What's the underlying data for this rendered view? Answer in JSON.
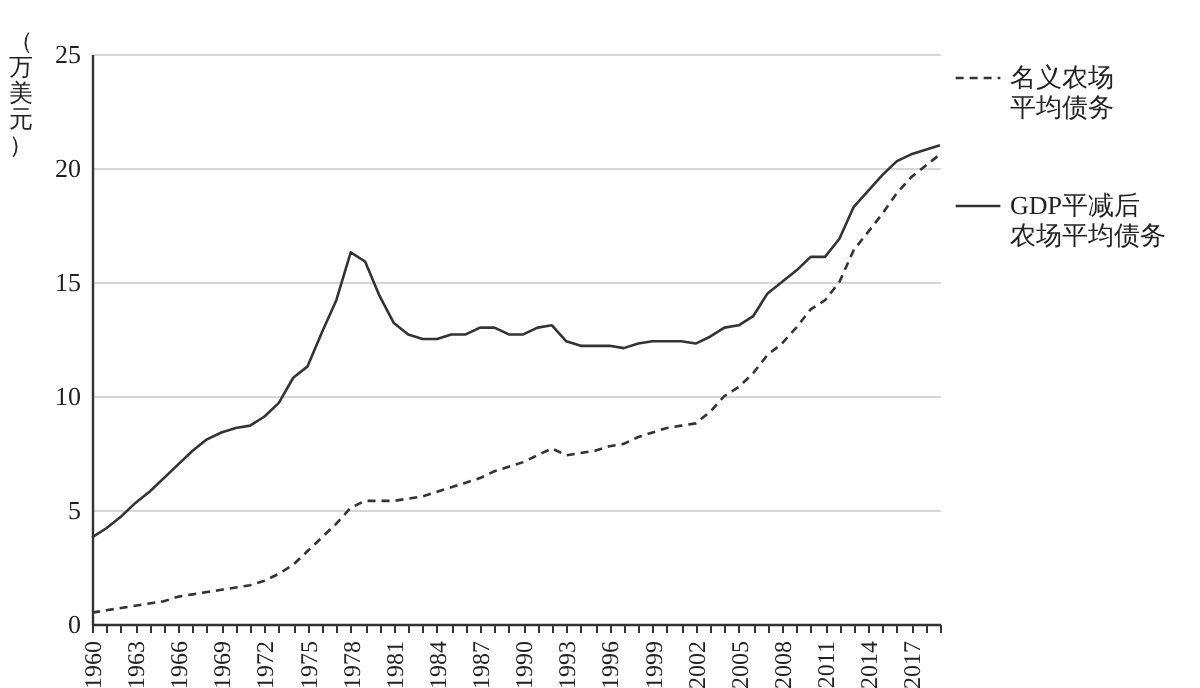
{
  "chart_data": {
    "type": "line",
    "ylabel": "（万美元）",
    "x": [
      1960,
      1961,
      1962,
      1963,
      1964,
      1965,
      1966,
      1967,
      1968,
      1969,
      1970,
      1971,
      1972,
      1973,
      1974,
      1975,
      1976,
      1977,
      1978,
      1979,
      1980,
      1981,
      1982,
      1983,
      1984,
      1985,
      1986,
      1987,
      1988,
      1989,
      1990,
      1991,
      1992,
      1993,
      1994,
      1995,
      1996,
      1997,
      1998,
      1999,
      2000,
      2001,
      2002,
      2003,
      2004,
      2005,
      2006,
      2007,
      2008,
      2009,
      2010,
      2011,
      2012,
      2013,
      2014,
      2015,
      2016,
      2017,
      2018,
      2019
    ],
    "series": [
      {
        "name": "名义农场平均债务",
        "color": "#333333",
        "line_style": "dashed",
        "values": [
          0.5,
          0.6,
          0.7,
          0.8,
          0.9,
          1.0,
          1.2,
          1.3,
          1.4,
          1.5,
          1.6,
          1.7,
          1.9,
          2.2,
          2.6,
          3.2,
          3.8,
          4.4,
          5.1,
          5.4,
          5.4,
          5.4,
          5.5,
          5.6,
          5.8,
          6.0,
          6.2,
          6.4,
          6.7,
          6.9,
          7.1,
          7.4,
          7.7,
          7.4,
          7.5,
          7.6,
          7.8,
          7.9,
          8.2,
          8.4,
          8.6,
          8.7,
          8.8,
          9.3,
          10.0,
          10.4,
          11.0,
          11.8,
          12.3,
          13.0,
          13.8,
          14.2,
          15.0,
          16.4,
          17.2,
          18.0,
          18.9,
          19.6,
          20.1,
          20.6
        ]
      },
      {
        "name": "GDP平减后农场平均债务",
        "color": "#333333",
        "line_style": "solid",
        "values": [
          3.8,
          4.2,
          4.7,
          5.3,
          5.8,
          6.4,
          7.0,
          7.6,
          8.1,
          8.4,
          8.6,
          8.7,
          9.1,
          9.7,
          10.8,
          11.3,
          12.8,
          14.2,
          16.3,
          15.9,
          14.4,
          13.2,
          12.7,
          12.5,
          12.5,
          12.7,
          12.7,
          13.0,
          13.0,
          12.7,
          12.7,
          13.0,
          13.1,
          12.4,
          12.2,
          12.2,
          12.2,
          12.1,
          12.3,
          12.4,
          12.4,
          12.4,
          12.3,
          12.6,
          13.0,
          13.1,
          13.5,
          14.5,
          15.0,
          15.5,
          16.1,
          16.1,
          16.9,
          18.3,
          19.0,
          19.7,
          20.3,
          20.6,
          20.8,
          21.0
        ]
      }
    ],
    "xlim": [
      1960,
      2019
    ],
    "xticks": [
      1960,
      {
        "value": 1961,
        "label": null
      },
      {
        "value": 1962,
        "label": null
      },
      1963,
      {
        "value": 1964,
        "label": null
      },
      {
        "value": 1965,
        "label": null
      },
      1966,
      {
        "value": 1967,
        "label": null
      },
      {
        "value": 1968,
        "label": null
      },
      1969,
      {
        "value": 1970,
        "label": null
      },
      {
        "value": 1971,
        "label": null
      },
      1972,
      {
        "value": 1973,
        "label": null
      },
      {
        "value": 1974,
        "label": null
      },
      1975,
      {
        "value": 1976,
        "label": null
      },
      {
        "value": 1977,
        "label": null
      },
      1978,
      {
        "value": 1979,
        "label": null
      },
      {
        "value": 1980,
        "label": null
      },
      1981,
      {
        "value": 1982,
        "label": null
      },
      {
        "value": 1983,
        "label": null
      },
      1984,
      {
        "value": 1985,
        "label": null
      },
      {
        "value": 1986,
        "label": null
      },
      1987,
      {
        "value": 1988,
        "label": null
      },
      {
        "value": 1989,
        "label": null
      },
      1990,
      {
        "value": 1991,
        "label": null
      },
      {
        "value": 1992,
        "label": null
      },
      1993,
      {
        "value": 1994,
        "label": null
      },
      {
        "value": 1995,
        "label": null
      },
      1996,
      {
        "value": 1997,
        "label": null
      },
      {
        "value": 1998,
        "label": null
      },
      1999,
      {
        "value": 2000,
        "label": null
      },
      {
        "value": 2001,
        "label": null
      },
      2002,
      {
        "value": 2003,
        "label": null
      },
      {
        "value": 2004,
        "label": null
      },
      2005,
      {
        "value": 2006,
        "label": null
      },
      {
        "value": 2007,
        "label": null
      },
      2008,
      {
        "value": 2009,
        "label": null
      },
      {
        "value": 2010,
        "label": null
      },
      2011,
      {
        "value": 2012,
        "label": null
      },
      {
        "value": 2013,
        "label": null
      },
      2014,
      {
        "value": 2015,
        "label": null
      },
      {
        "value": 2016,
        "label": null
      },
      2017,
      {
        "value": 2018,
        "label": null
      },
      {
        "value": 2019,
        "label": null
      }
    ],
    "ylim": [
      0,
      25
    ],
    "yticks": [
      0,
      5,
      10,
      15,
      20,
      25
    ],
    "grid": "y",
    "legend": "right",
    "marker": "none"
  }
}
